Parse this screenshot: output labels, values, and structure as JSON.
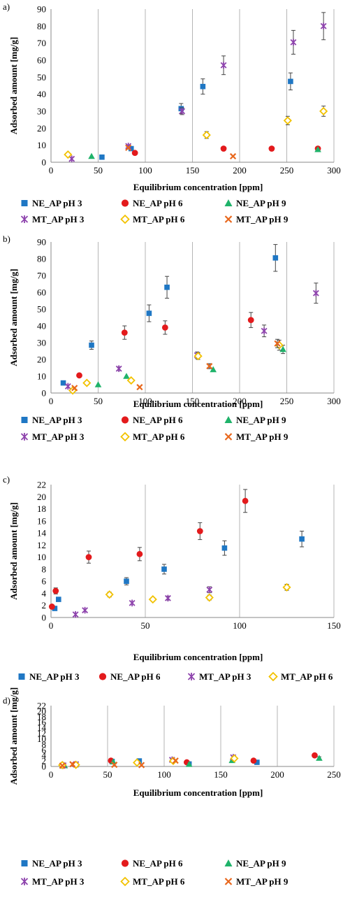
{
  "series_styles": {
    "NE_AP pH 3": {
      "marker": "square",
      "color": "#1f77c4"
    },
    "NE_AP pH 6": {
      "marker": "circle",
      "color": "#e31a1c"
    },
    "NE_AP pH 9": {
      "marker": "triangle",
      "color": "#1fb36a"
    },
    "MT_AP pH 3": {
      "marker": "star",
      "color": "#8e44ad"
    },
    "MT_AP pH 6": {
      "marker": "diamond",
      "color": "#f2c200"
    },
    "MT_AP pH 9": {
      "marker": "cross",
      "color": "#e8671c"
    }
  },
  "chart_data": [
    {
      "panel_label": "a)",
      "type": "scatter",
      "xlabel": "Equilibrium concentration [ppm]",
      "ylabel": "Adsorbed amount [mg/g]",
      "xlim": [
        0,
        300
      ],
      "ylim": [
        0,
        90
      ],
      "x_ticks": [
        0,
        50,
        100,
        150,
        200,
        250,
        300
      ],
      "y_ticks": [
        0,
        10,
        20,
        30,
        40,
        50,
        60,
        70,
        80,
        90
      ],
      "grid": "vertical",
      "legend_position": "bottom",
      "legend_columns": 3,
      "series": [
        {
          "name": "NE_AP pH 3",
          "x": [
            54,
            85,
            138,
            161,
            254
          ],
          "y": [
            3,
            8,
            31.5,
            44.5,
            47.5
          ],
          "err": [
            0,
            0,
            3,
            4.5,
            5
          ]
        },
        {
          "name": "NE_AP pH 6",
          "x": [
            89,
            183,
            234,
            283
          ],
          "y": [
            5.5,
            8,
            8,
            8
          ],
          "err": [
            0,
            0,
            0,
            0
          ]
        },
        {
          "name": "NE_AP pH 9",
          "x": [
            43,
            283
          ],
          "y": [
            3.5,
            7.5
          ],
          "err": [
            0,
            0
          ]
        },
        {
          "name": "MT_AP pH 3",
          "x": [
            22,
            82,
            139,
            183,
            257,
            289
          ],
          "y": [
            2,
            9.5,
            30,
            57,
            70.5,
            80
          ],
          "err": [
            0,
            0,
            2,
            5.5,
            7,
            8
          ]
        },
        {
          "name": "MT_AP pH 6",
          "x": [
            18,
            165,
            251,
            289
          ],
          "y": [
            4.5,
            16,
            24.5,
            30
          ],
          "err": [
            0,
            2,
            2.5,
            3
          ]
        },
        {
          "name": "MT_AP pH 9",
          "x": [
            82,
            193
          ],
          "y": [
            8.5,
            3.5
          ],
          "err": [
            0,
            0
          ]
        }
      ]
    },
    {
      "panel_label": "b)",
      "type": "scatter",
      "xlabel": "Equilibrium concentration [ppm]",
      "ylabel": "Adsorbed amount [mg/g]",
      "xlim": [
        0,
        300
      ],
      "ylim": [
        0,
        90
      ],
      "x_ticks": [
        0,
        50,
        100,
        150,
        200,
        250,
        300
      ],
      "y_ticks": [
        0,
        10,
        20,
        30,
        40,
        50,
        60,
        70,
        80,
        90
      ],
      "grid": "vertical",
      "legend_position": "bottom",
      "legend_columns": 3,
      "series": [
        {
          "name": "NE_AP pH 3",
          "x": [
            13,
            43,
            104,
            123,
            238
          ],
          "y": [
            6,
            28.5,
            47.5,
            63,
            80.5
          ],
          "err": [
            0,
            2.5,
            5,
            6.5,
            8
          ]
        },
        {
          "name": "NE_AP pH 6",
          "x": [
            30,
            78,
            121,
            212
          ],
          "y": [
            10.5,
            36,
            39,
            43.5
          ],
          "err": [
            0,
            4,
            4,
            4.5
          ]
        },
        {
          "name": "NE_AP pH 9",
          "x": [
            50,
            80,
            172,
            246
          ],
          "y": [
            5,
            10,
            14,
            26
          ],
          "err": [
            0,
            0,
            0,
            2.5
          ]
        },
        {
          "name": "MT_AP pH 3",
          "x": [
            18,
            72,
            155,
            226,
            281
          ],
          "y": [
            4,
            14.5,
            22.5,
            37,
            59.5
          ],
          "err": [
            0,
            1,
            2,
            3.5,
            6
          ]
        },
        {
          "name": "MT_AP pH 6",
          "x": [
            23,
            38,
            85,
            156,
            242
          ],
          "y": [
            1.5,
            6,
            7.5,
            22,
            28.5
          ],
          "err": [
            0,
            0,
            0,
            2,
            3
          ]
        },
        {
          "name": "MT_AP pH 9",
          "x": [
            25,
            94,
            168,
            240
          ],
          "y": [
            3,
            3.5,
            16,
            29.5
          ],
          "err": [
            0,
            0,
            1.5,
            2.5
          ]
        }
      ]
    },
    {
      "panel_label": "c)",
      "type": "scatter",
      "xlabel": "Equilibrium concentration [ppm]",
      "ylabel": "Adsorbed amount [mg/g]",
      "xlim": [
        0,
        150
      ],
      "ylim": [
        0,
        22
      ],
      "x_ticks": [
        0,
        50,
        100,
        150
      ],
      "y_ticks": [
        0,
        2,
        4,
        6,
        8,
        10,
        12,
        14,
        16,
        18,
        20,
        22
      ],
      "grid": "vertical",
      "legend_position": "bottom",
      "legend_columns": 4,
      "series": [
        {
          "name": "NE_AP pH 3",
          "x": [
            2,
            4,
            40,
            60,
            92,
            133
          ],
          "y": [
            1.5,
            3,
            6,
            8,
            11.5,
            13
          ],
          "err": [
            0,
            0,
            0.6,
            0.8,
            1.2,
            1.3
          ]
        },
        {
          "name": "NE_AP pH 6",
          "x": [
            0.5,
            2.5,
            20,
            47,
            79,
            103
          ],
          "y": [
            1.8,
            4.4,
            10,
            10.5,
            14.3,
            19.3
          ],
          "err": [
            0,
            0.5,
            1,
            1.1,
            1.4,
            1.9
          ]
        },
        {
          "name": "MT_AP pH 3",
          "x": [
            13,
            18,
            43,
            62,
            84
          ],
          "y": [
            0.5,
            1.2,
            2.4,
            3.2,
            4.6
          ],
          "err": [
            0,
            0,
            0,
            0.3,
            0.5
          ]
        },
        {
          "name": "MT_AP pH 6",
          "x": [
            31,
            54,
            84,
            125
          ],
          "y": [
            3.8,
            3,
            3.3,
            5
          ],
          "err": [
            0.4,
            0.3,
            0.4,
            0.5
          ]
        }
      ]
    },
    {
      "panel_label": "d)",
      "type": "scatter",
      "xlabel": "Equilibrium concentration [ppm]",
      "ylabel": "Adsorbed amount [mg/g]",
      "xlim": [
        0,
        250
      ],
      "ylim": [
        0,
        22
      ],
      "x_ticks": [
        0,
        50,
        100,
        150,
        200,
        250
      ],
      "y_ticks": [
        0,
        2,
        4,
        6,
        8,
        10,
        12,
        14,
        16,
        18,
        20,
        22
      ],
      "grid": "vertical",
      "legend_position": "bottom",
      "legend_columns": 3,
      "series": [
        {
          "name": "NE_AP pH 3",
          "x": [
            10,
            22,
            54,
            78,
            122,
            182
          ],
          "y": [
            0.2,
            0.6,
            1.8,
            2,
            0.9,
            1.5
          ],
          "err": [
            0,
            0,
            0,
            0,
            0,
            0
          ]
        },
        {
          "name": "NE_AP pH 6",
          "x": [
            11,
            21,
            53,
            120,
            179,
            233
          ],
          "y": [
            0.3,
            0.7,
            2.1,
            1.5,
            2.1,
            4
          ],
          "err": [
            0,
            0,
            0.3,
            0,
            0.4,
            0.6
          ]
        },
        {
          "name": "NE_AP pH 9",
          "x": [
            12,
            55,
            122,
            160,
            237
          ],
          "y": [
            0.3,
            1.7,
            0.8,
            2.2,
            3
          ],
          "err": [
            0,
            0,
            0,
            0.3,
            0.5
          ]
        },
        {
          "name": "MT_AP pH 3",
          "x": [
            11,
            22,
            107,
            161
          ],
          "y": [
            0.4,
            0.8,
            2.4,
            3.3
          ],
          "err": [
            0,
            0,
            0.3,
            0.4
          ]
        },
        {
          "name": "MT_AP pH 6",
          "x": [
            10,
            22,
            76,
            108,
            162
          ],
          "y": [
            0.5,
            0.6,
            1.4,
            2,
            2.9
          ],
          "err": [
            0,
            0,
            0,
            0.3,
            0.4
          ]
        },
        {
          "name": "MT_AP pH 9",
          "x": [
            10,
            19,
            56,
            80,
            110
          ],
          "y": [
            0.3,
            0.8,
            0.6,
            0.5,
            2.1
          ],
          "err": [
            0,
            0,
            0,
            0,
            0
          ]
        }
      ]
    }
  ]
}
